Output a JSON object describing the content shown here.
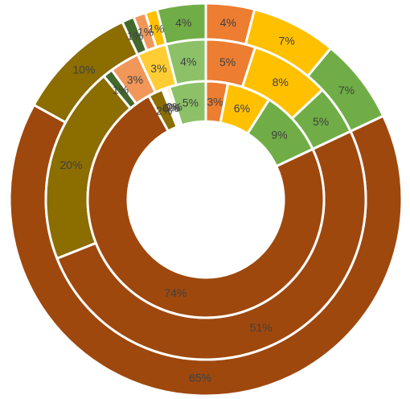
{
  "chart_data": {
    "type": "doughnut",
    "title": "",
    "legend": "none",
    "rings": [
      {
        "ring": "outer",
        "slices": [
          {
            "value": 4,
            "label": "4%",
            "color": "#ed7d31"
          },
          {
            "value": 7,
            "label": "7%",
            "color": "#ffc000"
          },
          {
            "value": 7,
            "label": "7%",
            "color": "#70ad47"
          },
          {
            "value": 65,
            "label": "65%",
            "color": "#9e480e"
          },
          {
            "value": 10,
            "label": "10%",
            "color": "#8b6d00"
          },
          {
            "value": 1,
            "label": "1%",
            "color": "#43682b"
          },
          {
            "value": 1,
            "label": "1%",
            "color": "#f1975a"
          },
          {
            "value": 1,
            "label": "1%",
            "color": "#ffc000"
          },
          {
            "value": 4,
            "label": "4%",
            "color": "#70ad47"
          }
        ]
      },
      {
        "ring": "middle",
        "slices": [
          {
            "value": 5,
            "label": "5%",
            "color": "#ed7d31"
          },
          {
            "value": 8,
            "label": "8%",
            "color": "#ffc000"
          },
          {
            "value": 5,
            "label": "5%",
            "color": "#70ad47"
          },
          {
            "value": 51,
            "label": "51%",
            "color": "#9e480e"
          },
          {
            "value": 20,
            "label": "20%",
            "color": "#8b6d00"
          },
          {
            "value": 1,
            "label": "1%",
            "color": "#43682b"
          },
          {
            "value": 3,
            "label": "3%",
            "color": "#f1975a"
          },
          {
            "value": 3,
            "label": "3%",
            "color": "#ffcd33"
          },
          {
            "value": 4,
            "label": "4%",
            "color": "#8cc168"
          }
        ]
      },
      {
        "ring": "inner",
        "slices": [
          {
            "value": 3,
            "label": "3%",
            "color": "#ed7d31"
          },
          {
            "value": 6,
            "label": "6%",
            "color": "#ffc000"
          },
          {
            "value": 9,
            "label": "9%",
            "color": "#70ad47"
          },
          {
            "value": 74,
            "label": "74%",
            "color": "#9e480e"
          },
          {
            "value": 2,
            "label": "2%",
            "color": "#8b6d00"
          },
          {
            "value": 0.3,
            "label": "0%",
            "color": "#43682b"
          },
          {
            "value": 0.3,
            "label": "0%",
            "color": "#f1975a"
          },
          {
            "value": 0.4,
            "label": "0%",
            "color": "#ffc000"
          },
          {
            "value": 5,
            "label": "5%",
            "color": "#8cc168"
          }
        ]
      }
    ]
  }
}
